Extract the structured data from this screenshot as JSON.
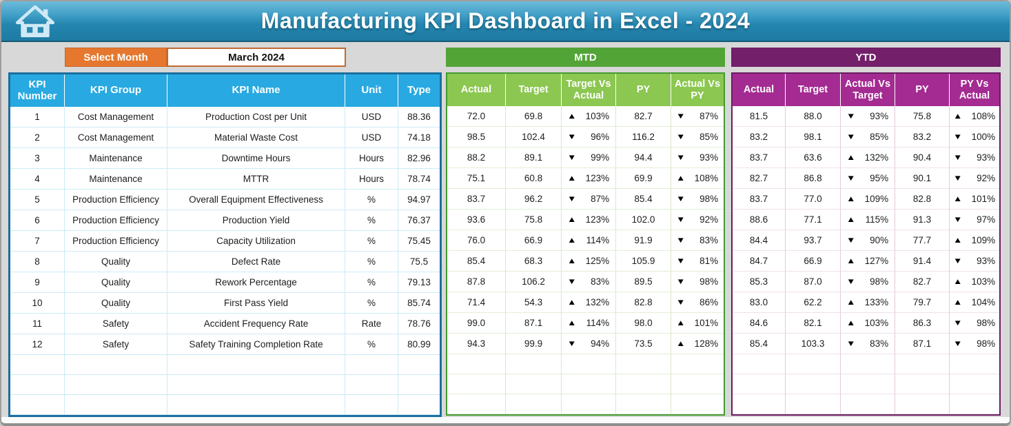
{
  "header": {
    "title": "Manufacturing KPI Dashboard in Excel - 2024"
  },
  "controls": {
    "select_month_label": "Select Month",
    "selected_month": "March 2024"
  },
  "sections": {
    "mtd_label": "MTD",
    "ytd_label": "YTD"
  },
  "icons": {
    "up": "▲",
    "down": "▼",
    "home": "home-icon"
  },
  "colors": {
    "titlebar_blue": "#2486af",
    "table_header_blue": "#29a9e1",
    "orange": "#e5782e",
    "mtd_green_dark": "#53a437",
    "mtd_green_light": "#8cc751",
    "ytd_purple_dark": "#731f6a",
    "ytd_magenta": "#a42b92",
    "triangle_black": "#000000"
  },
  "kpi_table": {
    "headers": [
      "KPI Number",
      "KPI Group",
      "KPI Name",
      "Unit",
      "Type"
    ],
    "empty_row_count": 3,
    "rows": [
      {
        "number": "1",
        "group": "Cost Management",
        "name": "Production Cost per Unit",
        "unit": "USD",
        "type": "88.36"
      },
      {
        "number": "2",
        "group": "Cost Management",
        "name": "Material Waste Cost",
        "unit": "USD",
        "type": "74.18"
      },
      {
        "number": "3",
        "group": "Maintenance",
        "name": "Downtime Hours",
        "unit": "Hours",
        "type": "82.96"
      },
      {
        "number": "4",
        "group": "Maintenance",
        "name": "MTTR",
        "unit": "Hours",
        "type": "78.74"
      },
      {
        "number": "5",
        "group": "Production Efficiency",
        "name": "Overall Equipment Effectiveness",
        "unit": "%",
        "type": "94.97"
      },
      {
        "number": "6",
        "group": "Production Efficiency",
        "name": "Production Yield",
        "unit": "%",
        "type": "76.37"
      },
      {
        "number": "7",
        "group": "Production Efficiency",
        "name": "Capacity Utilization",
        "unit": "%",
        "type": "75.45"
      },
      {
        "number": "8",
        "group": "Quality",
        "name": "Defect Rate",
        "unit": "%",
        "type": "75.5"
      },
      {
        "number": "9",
        "group": "Quality",
        "name": "Rework Percentage",
        "unit": "%",
        "type": "79.13"
      },
      {
        "number": "10",
        "group": "Quality",
        "name": "First Pass Yield",
        "unit": "%",
        "type": "85.74"
      },
      {
        "number": "11",
        "group": "Safety",
        "name": "Accident Frequency Rate",
        "unit": "Rate",
        "type": "78.76"
      },
      {
        "number": "12",
        "group": "Safety",
        "name": "Safety Training Completion Rate",
        "unit": "%",
        "type": "80.99"
      }
    ]
  },
  "mtd_table": {
    "headers": [
      "Actual",
      "Target",
      "Target Vs Actual",
      "PY",
      "Actual Vs PY"
    ],
    "empty_row_count": 3,
    "rows": [
      {
        "actual": "72.0",
        "target": "69.8",
        "target_vs_actual": {
          "dir": "up",
          "value": "103%"
        },
        "py": "82.7",
        "actual_vs_py": {
          "dir": "down",
          "value": "87%"
        }
      },
      {
        "actual": "98.5",
        "target": "102.4",
        "target_vs_actual": {
          "dir": "down",
          "value": "96%"
        },
        "py": "116.2",
        "actual_vs_py": {
          "dir": "down",
          "value": "85%"
        }
      },
      {
        "actual": "88.2",
        "target": "89.1",
        "target_vs_actual": {
          "dir": "down",
          "value": "99%"
        },
        "py": "94.4",
        "actual_vs_py": {
          "dir": "down",
          "value": "93%"
        }
      },
      {
        "actual": "75.1",
        "target": "60.8",
        "target_vs_actual": {
          "dir": "up",
          "value": "123%"
        },
        "py": "69.9",
        "actual_vs_py": {
          "dir": "up",
          "value": "108%"
        }
      },
      {
        "actual": "83.7",
        "target": "96.2",
        "target_vs_actual": {
          "dir": "down",
          "value": "87%"
        },
        "py": "85.4",
        "actual_vs_py": {
          "dir": "down",
          "value": "98%"
        }
      },
      {
        "actual": "93.6",
        "target": "75.8",
        "target_vs_actual": {
          "dir": "up",
          "value": "123%"
        },
        "py": "102.0",
        "actual_vs_py": {
          "dir": "down",
          "value": "92%"
        }
      },
      {
        "actual": "76.0",
        "target": "66.9",
        "target_vs_actual": {
          "dir": "up",
          "value": "114%"
        },
        "py": "91.9",
        "actual_vs_py": {
          "dir": "down",
          "value": "83%"
        }
      },
      {
        "actual": "85.4",
        "target": "68.3",
        "target_vs_actual": {
          "dir": "up",
          "value": "125%"
        },
        "py": "105.9",
        "actual_vs_py": {
          "dir": "down",
          "value": "81%"
        }
      },
      {
        "actual": "87.8",
        "target": "106.2",
        "target_vs_actual": {
          "dir": "down",
          "value": "83%"
        },
        "py": "89.5",
        "actual_vs_py": {
          "dir": "down",
          "value": "98%"
        }
      },
      {
        "actual": "71.4",
        "target": "54.3",
        "target_vs_actual": {
          "dir": "up",
          "value": "132%"
        },
        "py": "82.8",
        "actual_vs_py": {
          "dir": "down",
          "value": "86%"
        }
      },
      {
        "actual": "99.0",
        "target": "87.1",
        "target_vs_actual": {
          "dir": "up",
          "value": "114%"
        },
        "py": "98.0",
        "actual_vs_py": {
          "dir": "up",
          "value": "101%"
        }
      },
      {
        "actual": "94.3",
        "target": "99.9",
        "target_vs_actual": {
          "dir": "down",
          "value": "94%"
        },
        "py": "73.5",
        "actual_vs_py": {
          "dir": "up",
          "value": "128%"
        }
      }
    ]
  },
  "ytd_table": {
    "headers": [
      "Actual",
      "Target",
      "Actual Vs Target",
      "PY",
      "PY Vs Actual"
    ],
    "empty_row_count": 3,
    "rows": [
      {
        "actual": "81.5",
        "target": "88.0",
        "actual_vs_target": {
          "dir": "down",
          "value": "93%"
        },
        "py": "75.8",
        "py_vs_actual": {
          "dir": "up",
          "value": "108%"
        }
      },
      {
        "actual": "83.2",
        "target": "98.1",
        "actual_vs_target": {
          "dir": "down",
          "value": "85%"
        },
        "py": "83.2",
        "py_vs_actual": {
          "dir": "down",
          "value": "100%"
        }
      },
      {
        "actual": "83.7",
        "target": "63.6",
        "actual_vs_target": {
          "dir": "up",
          "value": "132%"
        },
        "py": "90.4",
        "py_vs_actual": {
          "dir": "down",
          "value": "93%"
        }
      },
      {
        "actual": "82.7",
        "target": "86.8",
        "actual_vs_target": {
          "dir": "down",
          "value": "95%"
        },
        "py": "90.1",
        "py_vs_actual": {
          "dir": "down",
          "value": "92%"
        }
      },
      {
        "actual": "83.7",
        "target": "77.0",
        "actual_vs_target": {
          "dir": "up",
          "value": "109%"
        },
        "py": "82.8",
        "py_vs_actual": {
          "dir": "up",
          "value": "101%"
        }
      },
      {
        "actual": "88.6",
        "target": "77.1",
        "actual_vs_target": {
          "dir": "up",
          "value": "115%"
        },
        "py": "91.3",
        "py_vs_actual": {
          "dir": "down",
          "value": "97%"
        }
      },
      {
        "actual": "84.4",
        "target": "93.7",
        "actual_vs_target": {
          "dir": "down",
          "value": "90%"
        },
        "py": "77.7",
        "py_vs_actual": {
          "dir": "up",
          "value": "109%"
        }
      },
      {
        "actual": "84.7",
        "target": "66.9",
        "actual_vs_target": {
          "dir": "up",
          "value": "127%"
        },
        "py": "91.4",
        "py_vs_actual": {
          "dir": "down",
          "value": "93%"
        }
      },
      {
        "actual": "85.3",
        "target": "87.0",
        "actual_vs_target": {
          "dir": "down",
          "value": "98%"
        },
        "py": "82.7",
        "py_vs_actual": {
          "dir": "up",
          "value": "103%"
        }
      },
      {
        "actual": "83.0",
        "target": "62.2",
        "actual_vs_target": {
          "dir": "up",
          "value": "133%"
        },
        "py": "79.7",
        "py_vs_actual": {
          "dir": "up",
          "value": "104%"
        }
      },
      {
        "actual": "84.6",
        "target": "82.1",
        "actual_vs_target": {
          "dir": "up",
          "value": "103%"
        },
        "py": "86.3",
        "py_vs_actual": {
          "dir": "down",
          "value": "98%"
        }
      },
      {
        "actual": "85.4",
        "target": "103.3",
        "actual_vs_target": {
          "dir": "down",
          "value": "83%"
        },
        "py": "87.1",
        "py_vs_actual": {
          "dir": "down",
          "value": "98%"
        }
      }
    ]
  }
}
